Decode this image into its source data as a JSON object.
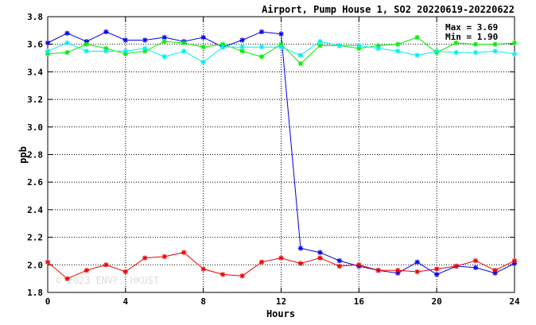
{
  "chart_data": {
    "type": "line",
    "title": "Airport, Pump House 1, SO2 20220619-20220622",
    "xlabel": "Hours",
    "ylabel": "ppb",
    "xlim": [
      0,
      24
    ],
    "ylim": [
      1.8,
      3.8
    ],
    "xticks": [
      0,
      4,
      8,
      12,
      16,
      20,
      24
    ],
    "yticks": [
      1.8,
      2.0,
      2.2,
      2.4,
      2.6,
      2.8,
      3.0,
      3.2,
      3.4,
      3.6,
      3.8
    ],
    "grid": true,
    "annotations": {
      "max": "Max = 3.69",
      "min": "Min = 1.90"
    },
    "watermark": "© 2023 ENVF, HKUST",
    "x": [
      0,
      1,
      2,
      3,
      4,
      5,
      6,
      7,
      8,
      9,
      10,
      11,
      12,
      13,
      14,
      15,
      16,
      17,
      18,
      19,
      20,
      21,
      22,
      23,
      24
    ],
    "series": [
      {
        "color": "#0000ee",
        "values": [
          3.61,
          3.68,
          3.62,
          3.69,
          3.63,
          3.63,
          3.65,
          3.62,
          3.65,
          3.58,
          3.63,
          3.69,
          3.675,
          2.12,
          2.09,
          2.03,
          1.99,
          1.96,
          1.94,
          2.02,
          1.93,
          1.99,
          1.98,
          1.94,
          2.01
        ]
      },
      {
        "color": "#00ee00",
        "values": [
          3.53,
          3.54,
          3.6,
          3.57,
          3.53,
          3.55,
          3.62,
          3.61,
          3.58,
          3.6,
          3.55,
          3.51,
          3.6,
          3.46,
          3.59,
          3.59,
          3.57,
          3.59,
          3.6,
          3.65,
          3.54,
          3.61,
          3.6,
          3.6,
          3.61
        ]
      },
      {
        "color": "#00eeee",
        "values": [
          3.55,
          3.61,
          3.55,
          3.55,
          3.55,
          3.57,
          3.51,
          3.55,
          3.47,
          3.58,
          3.58,
          3.58,
          3.58,
          3.52,
          3.62,
          3.59,
          3.59,
          3.57,
          3.55,
          3.52,
          3.55,
          3.54,
          3.54,
          3.55,
          3.53
        ]
      },
      {
        "color": "#ee0000",
        "values": [
          2.02,
          1.9,
          1.96,
          2.0,
          1.95,
          2.05,
          2.06,
          2.09,
          1.97,
          1.93,
          1.92,
          2.02,
          2.05,
          2.01,
          2.05,
          1.99,
          2.0,
          1.96,
          1.96,
          1.95,
          1.97,
          1.99,
          2.03,
          1.96,
          2.03
        ]
      }
    ]
  }
}
